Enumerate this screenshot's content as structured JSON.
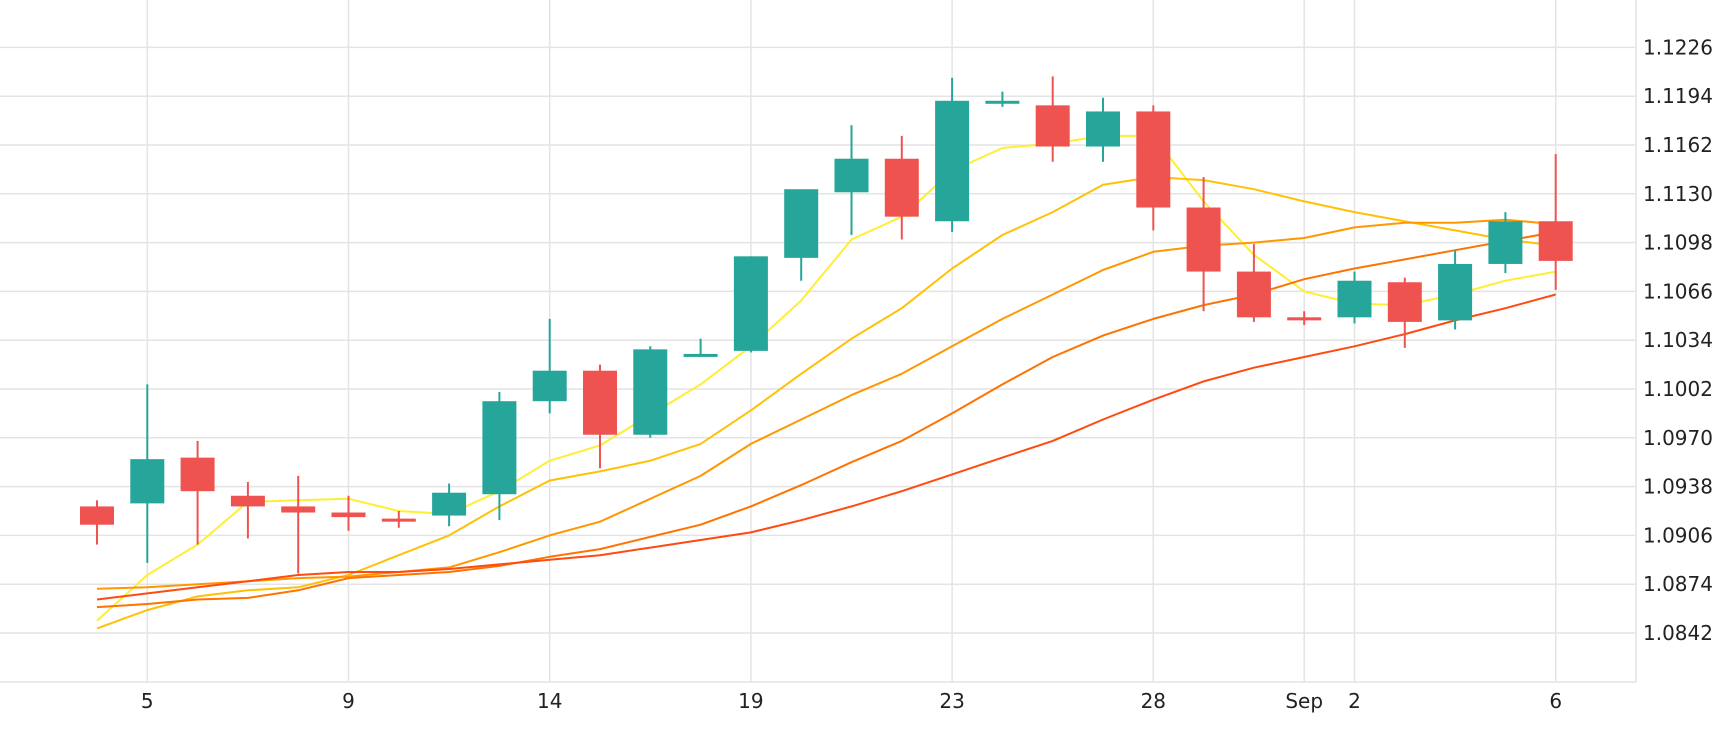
{
  "colors": {
    "background": "#ffffff",
    "grid": "#e4e4e4",
    "axis_text": "#222222",
    "up": "#26a69a",
    "down": "#ef5350"
  },
  "chart_data": {
    "type": "candlestick",
    "grid": true,
    "y_axis_position": "right",
    "ylim": [
      1.081,
      1.1248
    ],
    "y_ticks": [
      1.0842,
      1.0874,
      1.0906,
      1.0938,
      1.097,
      1.1002,
      1.1034,
      1.1066,
      1.1098,
      1.113,
      1.1162,
      1.1194,
      1.1226
    ],
    "y_tick_labels": [
      "1.0842",
      "1.0874",
      "1.0906",
      "1.0938",
      "1.0970",
      "1.1002",
      "1.1034",
      "1.1066",
      "1.1098",
      "1.1130",
      "1.1162",
      "1.1194",
      "1.1226"
    ],
    "x_ticks": [
      {
        "index": 1,
        "label": "5"
      },
      {
        "index": 5,
        "label": "9"
      },
      {
        "index": 9,
        "label": "14"
      },
      {
        "index": 13,
        "label": "19"
      },
      {
        "index": 17,
        "label": "23"
      },
      {
        "index": 21,
        "label": "28"
      },
      {
        "index": 24,
        "label": "Sep"
      },
      {
        "index": 25,
        "label": "2"
      },
      {
        "index": 29,
        "label": "6"
      }
    ],
    "candles": [
      {
        "o": 1.0925,
        "h": 1.0929,
        "l": 1.09,
        "c": 1.0913
      },
      {
        "o": 1.0927,
        "h": 1.1005,
        "l": 1.0888,
        "c": 1.0956
      },
      {
        "o": 1.0957,
        "h": 1.0968,
        "l": 1.09,
        "c": 1.0935
      },
      {
        "o": 1.0932,
        "h": 1.0941,
        "l": 1.0904,
        "c": 1.0925
      },
      {
        "o": 1.0925,
        "h": 1.0945,
        "l": 1.0881,
        "c": 1.0921
      },
      {
        "o": 1.0921,
        "h": 1.0932,
        "l": 1.0909,
        "c": 1.0918
      },
      {
        "o": 1.0917,
        "h": 1.0922,
        "l": 1.0911,
        "c": 1.0915
      },
      {
        "o": 1.0919,
        "h": 1.094,
        "l": 1.0912,
        "c": 1.0934
      },
      {
        "o": 1.0933,
        "h": 1.1,
        "l": 1.0916,
        "c": 1.0994
      },
      {
        "o": 1.0994,
        "h": 1.1048,
        "l": 1.0986,
        "c": 1.1014
      },
      {
        "o": 1.1014,
        "h": 1.1018,
        "l": 1.095,
        "c": 1.0972
      },
      {
        "o": 1.0972,
        "h": 1.103,
        "l": 1.097,
        "c": 1.1028
      },
      {
        "o": 1.1025,
        "h": 1.1035,
        "l": 1.1024,
        "c": 1.1025
      },
      {
        "o": 1.1027,
        "h": 1.1089,
        "l": 1.1026,
        "c": 1.1089
      },
      {
        "o": 1.1088,
        "h": 1.113,
        "l": 1.1073,
        "c": 1.1133
      },
      {
        "o": 1.1131,
        "h": 1.1175,
        "l": 1.1103,
        "c": 1.1153
      },
      {
        "o": 1.1153,
        "h": 1.1168,
        "l": 1.11,
        "c": 1.1115
      },
      {
        "o": 1.1112,
        "h": 1.1206,
        "l": 1.1105,
        "c": 1.1191
      },
      {
        "o": 1.1191,
        "h": 1.1197,
        "l": 1.1187,
        "c": 1.1191
      },
      {
        "o": 1.1188,
        "h": 1.1207,
        "l": 1.1151,
        "c": 1.1161
      },
      {
        "o": 1.1161,
        "h": 1.1193,
        "l": 1.1151,
        "c": 1.1184
      },
      {
        "o": 1.1184,
        "h": 1.1188,
        "l": 1.1106,
        "c": 1.1121
      },
      {
        "o": 1.1121,
        "h": 1.1141,
        "l": 1.1053,
        "c": 1.1079
      },
      {
        "o": 1.1079,
        "h": 1.1097,
        "l": 1.1046,
        "c": 1.1049
      },
      {
        "o": 1.1049,
        "h": 1.1053,
        "l": 1.1044,
        "c": 1.1047
      },
      {
        "o": 1.1049,
        "h": 1.1079,
        "l": 1.1045,
        "c": 1.1073
      },
      {
        "o": 1.1072,
        "h": 1.1075,
        "l": 1.1029,
        "c": 1.1046
      },
      {
        "o": 1.1047,
        "h": 1.1093,
        "l": 1.1041,
        "c": 1.1084
      },
      {
        "o": 1.1084,
        "h": 1.1118,
        "l": 1.1078,
        "c": 1.1112
      },
      {
        "o": 1.1112,
        "h": 1.1156,
        "l": 1.1067,
        "c": 1.1086
      }
    ],
    "moving_averages": [
      {
        "color": "#ffee33",
        "values": [
          1.085,
          1.088,
          1.09,
          1.0928,
          1.0929,
          1.093,
          1.0922,
          1.092,
          1.0935,
          1.0955,
          1.0965,
          1.0985,
          1.1005,
          1.103,
          1.106,
          1.11,
          1.1115,
          1.1145,
          1.116,
          1.1163,
          1.1168,
          1.1168,
          1.1125,
          1.109,
          1.1066,
          1.1058,
          1.1057,
          1.1064,
          1.1073,
          1.1079
        ]
      },
      {
        "color": "#ffc107",
        "values": [
          1.0845,
          1.0857,
          1.0866,
          1.087,
          1.0872,
          1.088,
          1.0893,
          1.0906,
          1.0925,
          1.0942,
          1.0948,
          1.0955,
          1.0966,
          1.0988,
          1.1012,
          1.1035,
          1.1055,
          1.1081,
          1.1103,
          1.1118,
          1.1136,
          1.1141,
          1.1139,
          1.1133,
          1.1125,
          1.1118,
          1.1112,
          1.1106,
          1.11,
          1.1096
        ]
      },
      {
        "color": "#ff9800",
        "values": [
          1.0871,
          1.0872,
          1.0874,
          1.0876,
          1.0878,
          1.0879,
          1.0882,
          1.0885,
          1.0895,
          1.0906,
          1.0915,
          1.093,
          1.0945,
          1.0966,
          1.0982,
          1.0998,
          1.1012,
          1.103,
          1.1048,
          1.1064,
          1.108,
          1.1092,
          1.1096,
          1.1098,
          1.1101,
          1.1108,
          1.1111,
          1.1111,
          1.1113,
          1.111
        ]
      },
      {
        "color": "#ff7300",
        "values": [
          1.0859,
          1.0861,
          1.0864,
          1.0865,
          1.087,
          1.0878,
          1.088,
          1.0882,
          1.0886,
          1.0892,
          1.0897,
          1.0905,
          1.0913,
          1.0925,
          1.0939,
          1.0954,
          1.0968,
          1.0986,
          1.1005,
          1.1023,
          1.1037,
          1.1048,
          1.1057,
          1.1064,
          1.1074,
          1.1081,
          1.1087,
          1.1093,
          1.1099,
          1.1105
        ]
      },
      {
        "color": "#ff4a10",
        "values": [
          1.0864,
          1.0868,
          1.0872,
          1.0876,
          1.088,
          1.0882,
          1.0882,
          1.0884,
          1.0887,
          1.089,
          1.0893,
          1.0898,
          1.0903,
          1.0908,
          1.0916,
          1.0925,
          1.0935,
          1.0946,
          1.0957,
          1.0968,
          1.0982,
          1.0995,
          1.1007,
          1.1016,
          1.1023,
          1.103,
          1.1038,
          1.1047,
          1.1055,
          1.1064
        ]
      }
    ]
  }
}
